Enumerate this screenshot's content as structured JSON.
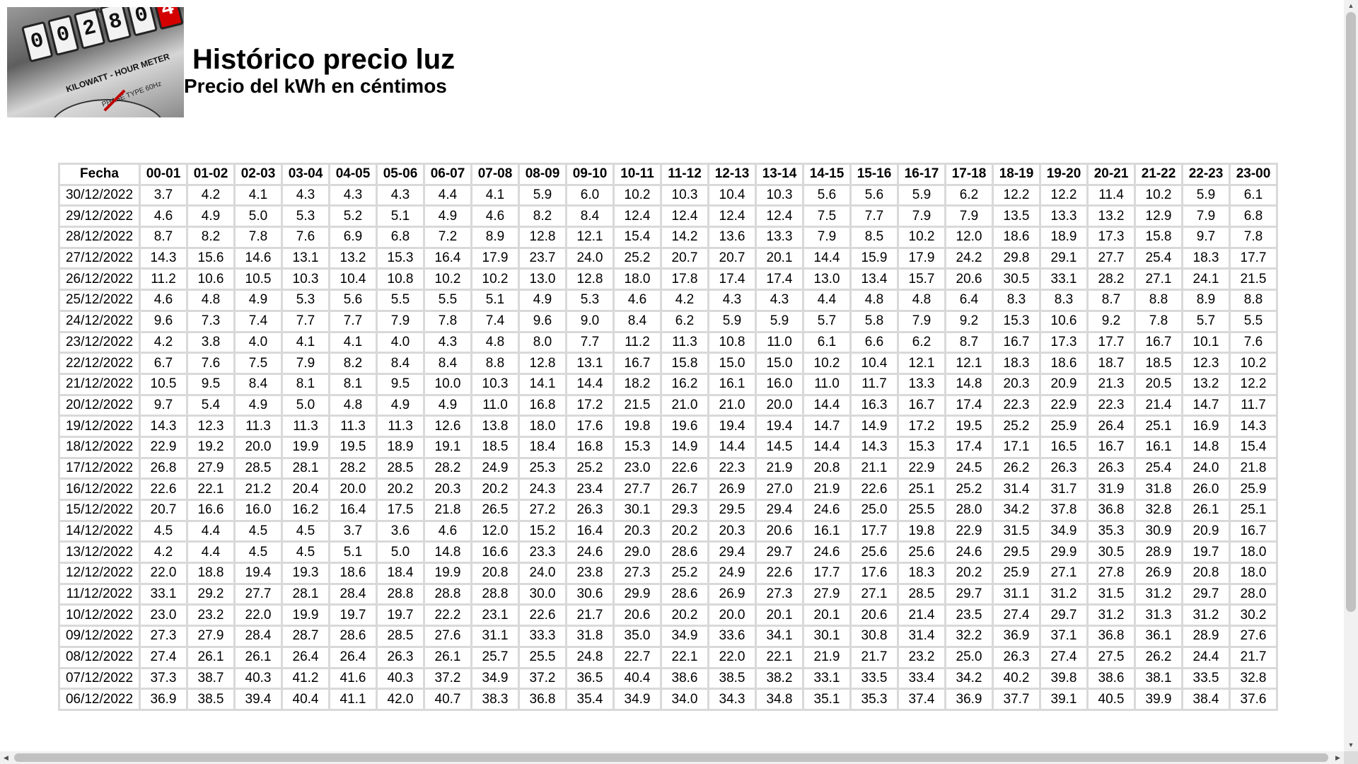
{
  "header": {
    "title": "Histórico precio luz",
    "subtitle": "Precio del kWh en céntimos",
    "image": {
      "icon": "kilowatt-hour-meter-photo",
      "digits": [
        "0",
        "0",
        "2",
        "8",
        "0",
        "4"
      ],
      "unit_label": "kWh",
      "caption": "KILOWATT - HOUR METER",
      "caption2": "PHASE  TYPE  60Hz"
    }
  },
  "table": {
    "headers": [
      "Fecha",
      "00-01",
      "01-02",
      "02-03",
      "03-04",
      "04-05",
      "05-06",
      "06-07",
      "07-08",
      "08-09",
      "09-10",
      "10-11",
      "11-12",
      "12-13",
      "13-14",
      "14-15",
      "15-16",
      "16-17",
      "17-18",
      "18-19",
      "19-20",
      "20-21",
      "21-22",
      "22-23",
      "23-00"
    ],
    "rows": [
      {
        "date": "30/12/2022",
        "values": [
          "3.7",
          "4.2",
          "4.1",
          "4.3",
          "4.3",
          "4.3",
          "4.4",
          "4.1",
          "5.9",
          "6.0",
          "10.2",
          "10.3",
          "10.4",
          "10.3",
          "5.6",
          "5.6",
          "5.9",
          "6.2",
          "12.2",
          "12.2",
          "11.4",
          "10.2",
          "5.9",
          "6.1"
        ]
      },
      {
        "date": "29/12/2022",
        "values": [
          "4.6",
          "4.9",
          "5.0",
          "5.3",
          "5.2",
          "5.1",
          "4.9",
          "4.6",
          "8.2",
          "8.4",
          "12.4",
          "12.4",
          "12.4",
          "12.4",
          "7.5",
          "7.7",
          "7.9",
          "7.9",
          "13.5",
          "13.3",
          "13.2",
          "12.9",
          "7.9",
          "6.8"
        ]
      },
      {
        "date": "28/12/2022",
        "values": [
          "8.7",
          "8.2",
          "7.8",
          "7.6",
          "6.9",
          "6.8",
          "7.2",
          "8.9",
          "12.8",
          "12.1",
          "15.4",
          "14.2",
          "13.6",
          "13.3",
          "7.9",
          "8.5",
          "10.2",
          "12.0",
          "18.6",
          "18.9",
          "17.3",
          "15.8",
          "9.7",
          "7.8"
        ]
      },
      {
        "date": "27/12/2022",
        "values": [
          "14.3",
          "15.6",
          "14.6",
          "13.1",
          "13.2",
          "15.3",
          "16.4",
          "17.9",
          "23.7",
          "24.0",
          "25.2",
          "20.7",
          "20.7",
          "20.1",
          "14.4",
          "15.9",
          "17.9",
          "24.2",
          "29.8",
          "29.1",
          "27.7",
          "25.4",
          "18.3",
          "17.7"
        ]
      },
      {
        "date": "26/12/2022",
        "values": [
          "11.2",
          "10.6",
          "10.5",
          "10.3",
          "10.4",
          "10.8",
          "10.2",
          "10.2",
          "13.0",
          "12.8",
          "18.0",
          "17.8",
          "17.4",
          "17.4",
          "13.0",
          "13.4",
          "15.7",
          "20.6",
          "30.5",
          "33.1",
          "28.2",
          "27.1",
          "24.1",
          "21.5"
        ]
      },
      {
        "date": "25/12/2022",
        "values": [
          "4.6",
          "4.8",
          "4.9",
          "5.3",
          "5.6",
          "5.5",
          "5.5",
          "5.1",
          "4.9",
          "5.3",
          "4.6",
          "4.2",
          "4.3",
          "4.3",
          "4.4",
          "4.8",
          "4.8",
          "6.4",
          "8.3",
          "8.3",
          "8.7",
          "8.8",
          "8.9",
          "8.8"
        ]
      },
      {
        "date": "24/12/2022",
        "values": [
          "9.6",
          "7.3",
          "7.4",
          "7.7",
          "7.7",
          "7.9",
          "7.8",
          "7.4",
          "9.6",
          "9.0",
          "8.4",
          "6.2",
          "5.9",
          "5.9",
          "5.7",
          "5.8",
          "7.9",
          "9.2",
          "15.3",
          "10.6",
          "9.2",
          "7.8",
          "5.7",
          "5.5"
        ]
      },
      {
        "date": "23/12/2022",
        "values": [
          "4.2",
          "3.8",
          "4.0",
          "4.1",
          "4.1",
          "4.0",
          "4.3",
          "4.8",
          "8.0",
          "7.7",
          "11.2",
          "11.3",
          "10.8",
          "11.0",
          "6.1",
          "6.6",
          "6.2",
          "8.7",
          "16.7",
          "17.3",
          "17.7",
          "16.7",
          "10.1",
          "7.6"
        ]
      },
      {
        "date": "22/12/2022",
        "values": [
          "6.7",
          "7.6",
          "7.5",
          "7.9",
          "8.2",
          "8.4",
          "8.4",
          "8.8",
          "12.8",
          "13.1",
          "16.7",
          "15.8",
          "15.0",
          "15.0",
          "10.2",
          "10.4",
          "12.1",
          "12.1",
          "18.3",
          "18.6",
          "18.7",
          "18.5",
          "12.3",
          "10.2"
        ]
      },
      {
        "date": "21/12/2022",
        "values": [
          "10.5",
          "9.5",
          "8.4",
          "8.1",
          "8.1",
          "9.5",
          "10.0",
          "10.3",
          "14.1",
          "14.4",
          "18.2",
          "16.2",
          "16.1",
          "16.0",
          "11.0",
          "11.7",
          "13.3",
          "14.8",
          "20.3",
          "20.9",
          "21.3",
          "20.5",
          "13.2",
          "12.2"
        ]
      },
      {
        "date": "20/12/2022",
        "values": [
          "9.7",
          "5.4",
          "4.9",
          "5.0",
          "4.8",
          "4.9",
          "4.9",
          "11.0",
          "16.8",
          "17.2",
          "21.5",
          "21.0",
          "21.0",
          "20.0",
          "14.4",
          "16.3",
          "16.7",
          "17.4",
          "22.3",
          "22.9",
          "22.3",
          "21.4",
          "14.7",
          "11.7"
        ]
      },
      {
        "date": "19/12/2022",
        "values": [
          "14.3",
          "12.3",
          "11.3",
          "11.3",
          "11.3",
          "11.3",
          "12.6",
          "13.8",
          "18.0",
          "17.6",
          "19.8",
          "19.6",
          "19.4",
          "19.4",
          "14.7",
          "14.9",
          "17.2",
          "19.5",
          "25.2",
          "25.9",
          "26.4",
          "25.1",
          "16.9",
          "14.3"
        ]
      },
      {
        "date": "18/12/2022",
        "values": [
          "22.9",
          "19.2",
          "20.0",
          "19.9",
          "19.5",
          "18.9",
          "19.1",
          "18.5",
          "18.4",
          "16.8",
          "15.3",
          "14.9",
          "14.4",
          "14.5",
          "14.4",
          "14.3",
          "15.3",
          "17.4",
          "17.1",
          "16.5",
          "16.7",
          "16.1",
          "14.8",
          "15.4"
        ]
      },
      {
        "date": "17/12/2022",
        "values": [
          "26.8",
          "27.9",
          "28.5",
          "28.1",
          "28.2",
          "28.5",
          "28.2",
          "24.9",
          "25.3",
          "25.2",
          "23.0",
          "22.6",
          "22.3",
          "21.9",
          "20.8",
          "21.1",
          "22.9",
          "24.5",
          "26.2",
          "26.3",
          "26.3",
          "25.4",
          "24.0",
          "21.8"
        ]
      },
      {
        "date": "16/12/2022",
        "values": [
          "22.6",
          "22.1",
          "21.2",
          "20.4",
          "20.0",
          "20.2",
          "20.3",
          "20.2",
          "24.3",
          "23.4",
          "27.7",
          "26.7",
          "26.9",
          "27.0",
          "21.9",
          "22.6",
          "25.1",
          "25.2",
          "31.4",
          "31.7",
          "31.9",
          "31.8",
          "26.0",
          "25.9"
        ]
      },
      {
        "date": "15/12/2022",
        "values": [
          "20.7",
          "16.6",
          "16.0",
          "16.2",
          "16.4",
          "17.5",
          "21.8",
          "26.5",
          "27.2",
          "26.3",
          "30.1",
          "29.3",
          "29.5",
          "29.4",
          "24.6",
          "25.0",
          "25.5",
          "28.0",
          "34.2",
          "37.8",
          "36.8",
          "32.8",
          "26.1",
          "25.1"
        ]
      },
      {
        "date": "14/12/2022",
        "values": [
          "4.5",
          "4.4",
          "4.5",
          "4.5",
          "3.7",
          "3.6",
          "4.6",
          "12.0",
          "15.2",
          "16.4",
          "20.3",
          "20.2",
          "20.3",
          "20.6",
          "16.1",
          "17.7",
          "19.8",
          "22.9",
          "31.5",
          "34.9",
          "35.3",
          "30.9",
          "20.9",
          "16.7"
        ]
      },
      {
        "date": "13/12/2022",
        "values": [
          "4.2",
          "4.4",
          "4.5",
          "4.5",
          "5.1",
          "5.0",
          "14.8",
          "16.6",
          "23.3",
          "24.6",
          "29.0",
          "28.6",
          "29.4",
          "29.7",
          "24.6",
          "25.6",
          "25.6",
          "24.6",
          "29.5",
          "29.9",
          "30.5",
          "28.9",
          "19.7",
          "18.0"
        ]
      },
      {
        "date": "12/12/2022",
        "values": [
          "22.0",
          "18.8",
          "19.4",
          "19.3",
          "18.6",
          "18.4",
          "19.9",
          "20.8",
          "24.0",
          "23.8",
          "27.3",
          "25.2",
          "24.9",
          "22.6",
          "17.7",
          "17.6",
          "18.3",
          "20.2",
          "25.9",
          "27.1",
          "27.8",
          "26.9",
          "20.8",
          "18.0"
        ]
      },
      {
        "date": "11/12/2022",
        "values": [
          "33.1",
          "29.2",
          "27.7",
          "28.1",
          "28.4",
          "28.8",
          "28.8",
          "28.8",
          "30.0",
          "30.6",
          "29.9",
          "28.6",
          "26.9",
          "27.3",
          "27.9",
          "27.1",
          "28.5",
          "29.7",
          "31.1",
          "31.2",
          "31.5",
          "31.2",
          "29.7",
          "28.0"
        ]
      },
      {
        "date": "10/12/2022",
        "values": [
          "23.0",
          "23.2",
          "22.0",
          "19.9",
          "19.7",
          "19.7",
          "22.2",
          "23.1",
          "22.6",
          "21.7",
          "20.6",
          "20.2",
          "20.0",
          "20.1",
          "20.1",
          "20.6",
          "21.4",
          "23.5",
          "27.4",
          "29.7",
          "31.2",
          "31.3",
          "31.2",
          "30.2"
        ]
      },
      {
        "date": "09/12/2022",
        "values": [
          "27.3",
          "27.9",
          "28.4",
          "28.7",
          "28.6",
          "28.5",
          "27.6",
          "31.1",
          "33.3",
          "31.8",
          "35.0",
          "34.9",
          "33.6",
          "34.1",
          "30.1",
          "30.8",
          "31.4",
          "32.2",
          "36.9",
          "37.1",
          "36.8",
          "36.1",
          "28.9",
          "27.6"
        ]
      },
      {
        "date": "08/12/2022",
        "values": [
          "27.4",
          "26.1",
          "26.1",
          "26.4",
          "26.4",
          "26.3",
          "26.1",
          "25.7",
          "25.5",
          "24.8",
          "22.7",
          "22.1",
          "22.0",
          "22.1",
          "21.9",
          "21.7",
          "23.2",
          "25.0",
          "26.3",
          "27.4",
          "27.5",
          "26.2",
          "24.4",
          "21.7"
        ]
      },
      {
        "date": "07/12/2022",
        "values": [
          "37.3",
          "38.7",
          "40.3",
          "41.2",
          "41.6",
          "40.3",
          "37.2",
          "34.9",
          "37.2",
          "36.5",
          "40.4",
          "38.6",
          "38.5",
          "38.2",
          "33.1",
          "33.5",
          "33.4",
          "34.2",
          "40.2",
          "39.8",
          "38.6",
          "38.1",
          "33.5",
          "32.8"
        ]
      },
      {
        "date": "06/12/2022",
        "values": [
          "36.9",
          "38.5",
          "39.4",
          "40.4",
          "41.1",
          "42.0",
          "40.7",
          "38.3",
          "36.8",
          "35.4",
          "34.9",
          "34.0",
          "34.3",
          "34.8",
          "35.1",
          "35.3",
          "37.4",
          "36.9",
          "37.7",
          "39.1",
          "40.5",
          "39.9",
          "38.4",
          "37.6"
        ]
      }
    ]
  },
  "scrollbars": {
    "up_arrow": "▲",
    "down_arrow": "▼",
    "left_arrow": "◀",
    "right_arrow": "▶"
  }
}
